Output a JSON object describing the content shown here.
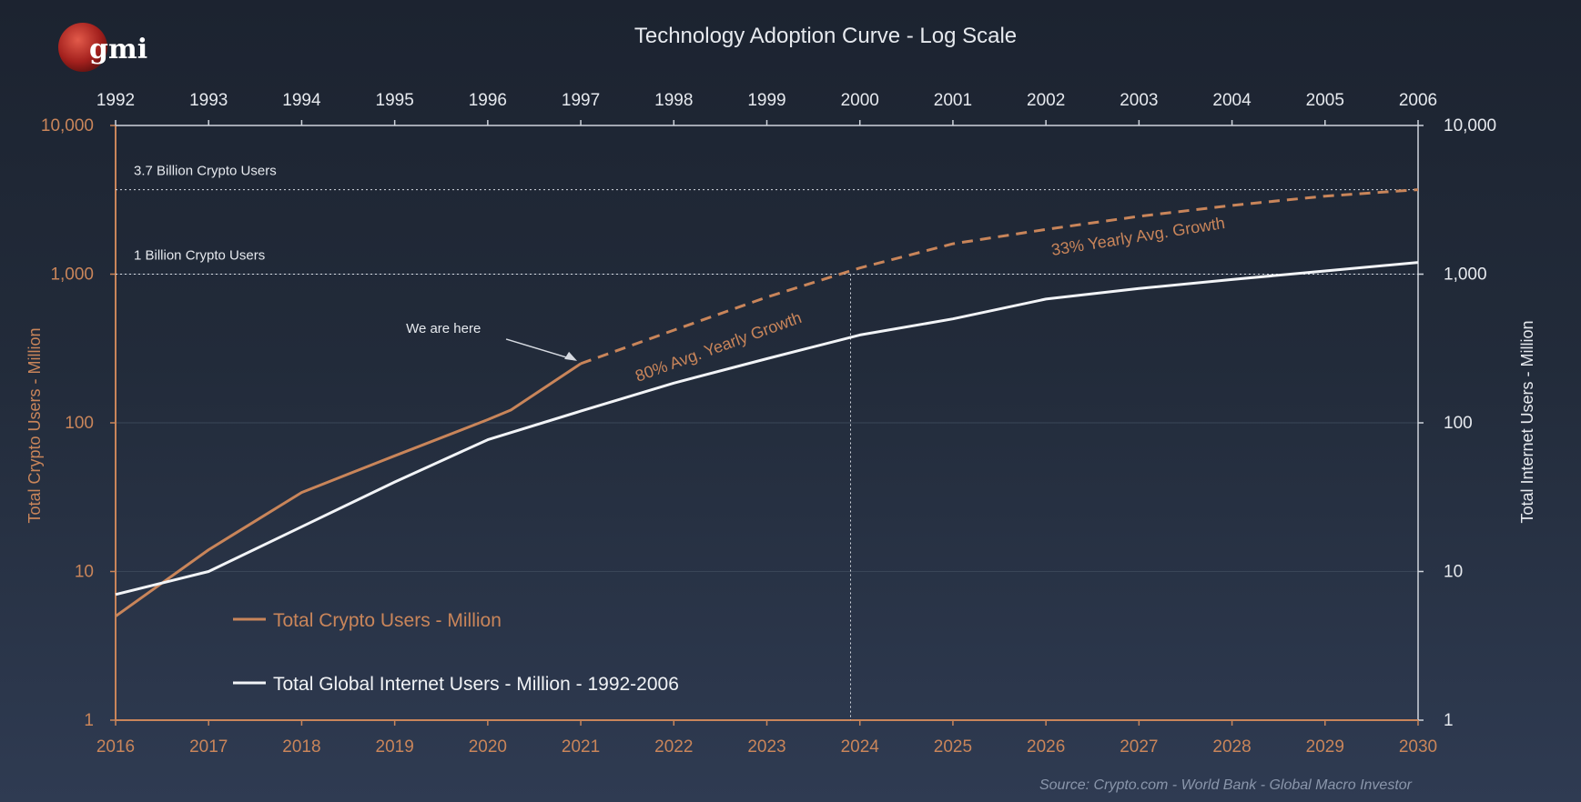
{
  "logo": {
    "text": "gmi"
  },
  "chart_data": {
    "type": "line",
    "title": "Technology Adoption Curve - Log Scale",
    "yscale": "log",
    "ylim": [
      1,
      10000
    ],
    "ylabel_left": "Total Crypto Users - Million",
    "ylabel_right": "Total Internet Users - Million",
    "y_ticks": [
      "1",
      "10",
      "100",
      "1,000",
      "10,000"
    ],
    "y_tick_values": [
      1,
      10,
      100,
      1000,
      10000
    ],
    "x_bottom": [
      "2016",
      "2017",
      "2018",
      "2019",
      "2020",
      "2021",
      "2022",
      "2023",
      "2024",
      "2025",
      "2026",
      "2027",
      "2028",
      "2029",
      "2030"
    ],
    "x_top": [
      "1992",
      "1993",
      "1994",
      "1995",
      "1996",
      "1997",
      "1998",
      "1999",
      "2000",
      "2001",
      "2002",
      "2003",
      "2004",
      "2005",
      "2006"
    ],
    "series": [
      {
        "name": "Total Crypto Users - Million",
        "color": "#c9855a",
        "points": [
          [
            2016,
            5
          ],
          [
            2017,
            14
          ],
          [
            2018,
            34
          ],
          [
            2019,
            60
          ],
          [
            2020,
            105
          ],
          [
            2020.25,
            122
          ],
          [
            2021,
            250
          ]
        ]
      },
      {
        "name": "Total Crypto Users - Million",
        "color": "#c9855a",
        "dashed": true,
        "points": [
          [
            2021,
            250
          ],
          [
            2022,
            420
          ],
          [
            2023,
            700
          ],
          [
            2024,
            1100
          ],
          [
            2025,
            1600
          ],
          [
            2026,
            2000
          ],
          [
            2027,
            2450
          ],
          [
            2028,
            2900
          ],
          [
            2029,
            3350
          ],
          [
            2030,
            3700
          ]
        ]
      },
      {
        "name": "Total Global Internet Users - Million - 1992-2006",
        "color": "#f2f4f7",
        "points": [
          [
            2016,
            7
          ],
          [
            2017,
            10
          ],
          [
            2018,
            20
          ],
          [
            2019,
            40
          ],
          [
            2020,
            77
          ],
          [
            2021,
            120
          ],
          [
            2022,
            185
          ],
          [
            2023,
            270
          ],
          [
            2024,
            390
          ],
          [
            2025,
            500
          ],
          [
            2026,
            680
          ],
          [
            2027,
            800
          ],
          [
            2028,
            920
          ],
          [
            2029,
            1050
          ],
          [
            2030,
            1200
          ]
        ]
      }
    ],
    "reference_lines": [
      {
        "label": "3.7 Billion Crypto Users",
        "value": 3700
      },
      {
        "label": "1 Billion Crypto Users",
        "value": 1000
      }
    ],
    "vertical_marker": {
      "x": 2023.9,
      "from": 1,
      "to": 1000
    },
    "annotations": {
      "we_are_here": {
        "text": "We are here",
        "x": 2021,
        "y": 250
      },
      "growth_80": "80% Avg. Yearly Growth",
      "growth_33": "33% Yearly Avg. Growth"
    },
    "legend": {
      "position": "bottom-left",
      "crypto": "Total Crypto Users - Million",
      "internet": "Total Global Internet Users - Million - 1992-2006"
    },
    "source": "Source:   Crypto.com  - World Bank - Global Macro Investor",
    "grid": true
  }
}
